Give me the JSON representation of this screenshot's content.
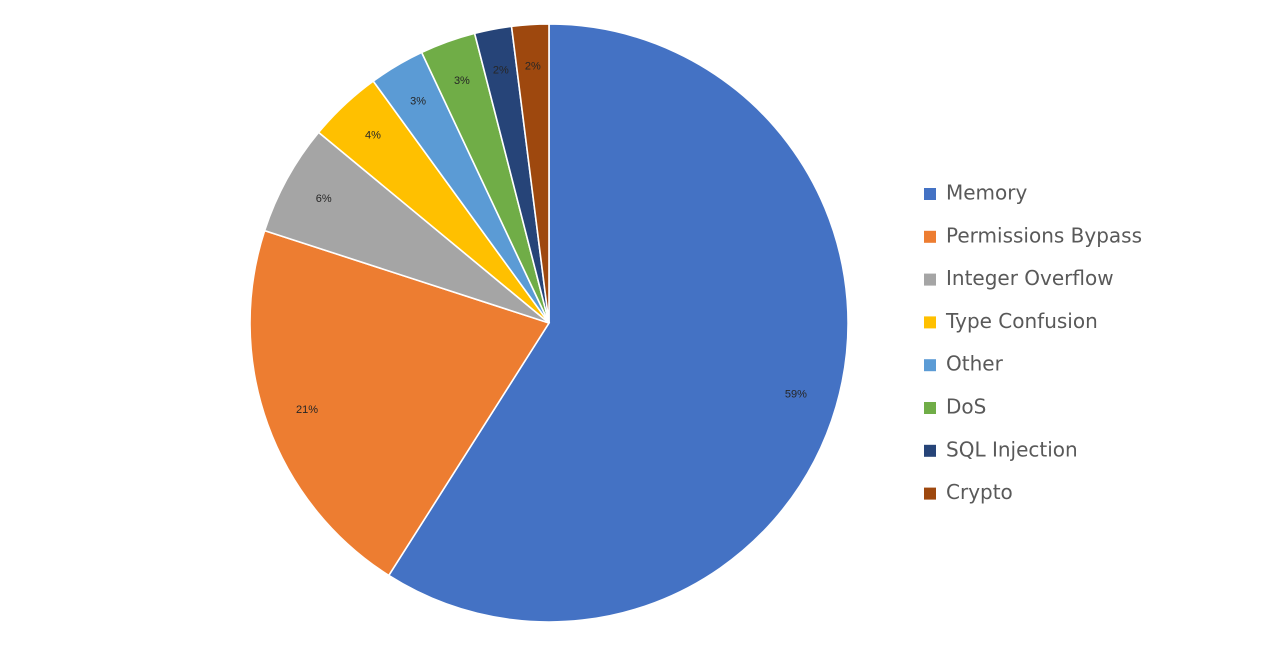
{
  "chart_data": {
    "type": "pie",
    "title": "",
    "legend_position": "right",
    "start": "top-clockwise",
    "slices": [
      {
        "label": "Memory",
        "value": 59,
        "display": "59%",
        "color": "#4472C4"
      },
      {
        "label": "Permissions Bypass",
        "value": 21,
        "display": "21%",
        "color": "#ED7D31"
      },
      {
        "label": "Integer Overflow",
        "value": 6,
        "display": "6%",
        "color": "#A5A5A5"
      },
      {
        "label": "Type Confusion",
        "value": 4,
        "display": "4%",
        "color": "#FFC000"
      },
      {
        "label": "Other",
        "value": 3,
        "display": "3%",
        "color": "#5B9BD5"
      },
      {
        "label": "DoS",
        "value": 3,
        "display": "3%",
        "color": "#70AD47"
      },
      {
        "label": "SQL Injection",
        "value": 2,
        "display": "2%",
        "color": "#264478"
      },
      {
        "label": "Crypto",
        "value": 2,
        "display": "2%",
        "color": "#9E480E"
      }
    ]
  }
}
